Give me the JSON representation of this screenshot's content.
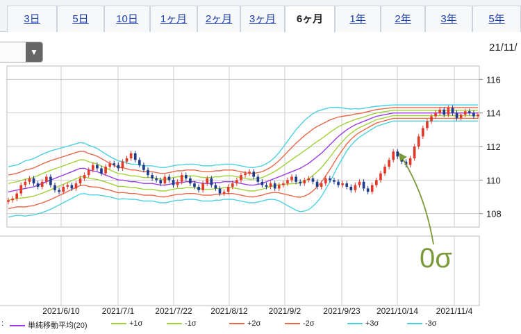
{
  "tabs": [
    {
      "label": "3日",
      "active": false
    },
    {
      "label": "5日",
      "active": false
    },
    {
      "label": "10日",
      "active": false
    },
    {
      "label": "1ヶ月",
      "active": false
    },
    {
      "label": "2ヶ月",
      "active": false
    },
    {
      "label": "3ヶ月",
      "active": false
    },
    {
      "label": "6ヶ月",
      "active": true
    },
    {
      "label": "1年",
      "active": false
    },
    {
      "label": "2年",
      "active": false
    },
    {
      "label": "3年",
      "active": false
    },
    {
      "label": "5年",
      "active": false
    }
  ],
  "dropdown": {
    "value": "",
    "arrow": "▼"
  },
  "date_label": "21/11/",
  "annotation": "0σ",
  "legend_prefix": ":",
  "colors": {
    "candle_up": "#e23a2a",
    "candle_down": "#1f3a8a",
    "sma": "#9a3ae0",
    "band1": "#9fd23a",
    "band2": "#e8684a",
    "band3": "#4cd0e0",
    "annotation": "#7a9a3a"
  },
  "chart_data": {
    "type": "candlestick",
    "title": "",
    "xlabel": "",
    "ylabel": "",
    "ylim": [
      107.2,
      116.8
    ],
    "yticks": [
      108,
      110,
      112,
      114,
      116
    ],
    "x_tick_labels": [
      "2021/6/10",
      "2021/7/1",
      "2021/7/22",
      "2021/8/12",
      "2021/9/2",
      "2021/9/23",
      "2021/10/14",
      "2021/11/4"
    ],
    "legend": [
      {
        "name": "単純移動平均(20)",
        "color": "#9a3ae0"
      },
      {
        "name": "+1σ",
        "color": "#9fd23a"
      },
      {
        "name": "-1σ",
        "color": "#9fd23a"
      },
      {
        "name": "+2σ",
        "color": "#e8684a"
      },
      {
        "name": "-2σ",
        "color": "#e8684a"
      },
      {
        "name": "+3σ",
        "color": "#4cd0e0"
      },
      {
        "name": "-3σ",
        "color": "#4cd0e0"
      }
    ],
    "close": [
      108.8,
      108.9,
      109.2,
      109.7,
      109.9,
      110.1,
      109.8,
      109.6,
      109.9,
      110.2,
      109.7,
      109.4,
      109.3,
      109.6,
      109.7,
      109.5,
      109.8,
      110.1,
      110.3,
      110.6,
      110.9,
      110.7,
      110.4,
      110.8,
      111.0,
      110.9,
      110.7,
      111.1,
      111.3,
      111.6,
      111.2,
      110.9,
      110.6,
      110.3,
      110.1,
      110.0,
      109.8,
      110.2,
      110.0,
      109.7,
      109.9,
      110.3,
      110.1,
      109.8,
      109.6,
      109.4,
      109.8,
      110.1,
      109.7,
      109.5,
      109.2,
      109.3,
      109.6,
      109.8,
      110.0,
      110.3,
      110.4,
      110.5,
      110.2,
      109.9,
      109.7,
      109.6,
      109.8,
      109.5,
      109.7,
      109.8,
      110.0,
      110.2,
      109.9,
      109.8,
      110.0,
      110.1,
      109.9,
      109.6,
      109.8,
      110.1,
      110.0,
      109.9,
      109.7,
      109.8,
      109.6,
      109.4,
      109.7,
      109.9,
      109.5,
      109.3,
      109.7,
      110.0,
      110.4,
      110.8,
      111.2,
      111.7,
      111.4,
      111.1,
      110.9,
      111.3,
      112.0,
      112.6,
      113.1,
      113.5,
      113.8,
      114.0,
      114.2,
      113.9,
      114.3,
      114.0,
      113.7,
      113.9,
      114.1,
      114.0,
      113.8,
      113.9
    ],
    "sma20": [
      109.3,
      109.35,
      109.4,
      109.45,
      109.5,
      109.55,
      109.6,
      109.7,
      109.8,
      109.9,
      110.0,
      110.1,
      110.2,
      110.3,
      110.4,
      110.5,
      110.6,
      110.7,
      110.7,
      110.6,
      110.55,
      110.5,
      110.4,
      110.3,
      110.2,
      110.1,
      110.0,
      110.0,
      109.95,
      109.9,
      109.9,
      109.85,
      109.8,
      109.8,
      109.8,
      109.75,
      109.7,
      109.7,
      109.75,
      109.8,
      109.85,
      109.85,
      109.9,
      109.9,
      109.9,
      109.85,
      109.8,
      109.8,
      109.8,
      109.85,
      109.85,
      109.9,
      109.9,
      109.9,
      109.85,
      109.8,
      109.75,
      109.7,
      109.7,
      109.75,
      109.8,
      109.9,
      110.0,
      110.1,
      110.2,
      110.3,
      110.4,
      110.5,
      110.6,
      110.7,
      110.85,
      111.0,
      111.2,
      111.4,
      111.6,
      111.85,
      112.1,
      112.35,
      112.6,
      112.8,
      113.0,
      113.15,
      113.3,
      113.4,
      113.5,
      113.6,
      113.7,
      113.8,
      113.85,
      113.9,
      113.95,
      114.0,
      114.0,
      114.0,
      114.0,
      114.0,
      114.0,
      114.0,
      114.0,
      114.0,
      114.0,
      114.0,
      114.0,
      114.0,
      114.0,
      114.0,
      114.0,
      114.0,
      114.0,
      114.0,
      114.0,
      114.0
    ],
    "sigma": [
      0.5,
      0.5,
      0.5,
      0.52,
      0.55,
      0.55,
      0.56,
      0.57,
      0.58,
      0.58,
      0.58,
      0.57,
      0.56,
      0.55,
      0.54,
      0.53,
      0.52,
      0.51,
      0.5,
      0.49,
      0.48,
      0.46,
      0.44,
      0.42,
      0.4,
      0.39,
      0.38,
      0.37,
      0.36,
      0.35,
      0.35,
      0.35,
      0.35,
      0.35,
      0.35,
      0.35,
      0.35,
      0.35,
      0.35,
      0.35,
      0.35,
      0.35,
      0.35,
      0.35,
      0.35,
      0.35,
      0.35,
      0.35,
      0.35,
      0.35,
      0.35,
      0.35,
      0.35,
      0.35,
      0.35,
      0.35,
      0.35,
      0.35,
      0.35,
      0.35,
      0.35,
      0.36,
      0.38,
      0.42,
      0.48,
      0.56,
      0.64,
      0.72,
      0.8,
      0.86,
      0.9,
      0.92,
      0.92,
      0.9,
      0.86,
      0.8,
      0.74,
      0.66,
      0.58,
      0.5,
      0.42,
      0.36,
      0.32,
      0.28,
      0.26,
      0.24,
      0.22,
      0.2,
      0.19,
      0.18,
      0.17,
      0.16,
      0.16,
      0.16,
      0.16,
      0.16,
      0.16,
      0.16,
      0.16,
      0.16,
      0.16,
      0.16,
      0.16,
      0.16,
      0.16,
      0.16,
      0.16,
      0.16,
      0.16,
      0.16,
      0.16,
      0.16
    ]
  }
}
